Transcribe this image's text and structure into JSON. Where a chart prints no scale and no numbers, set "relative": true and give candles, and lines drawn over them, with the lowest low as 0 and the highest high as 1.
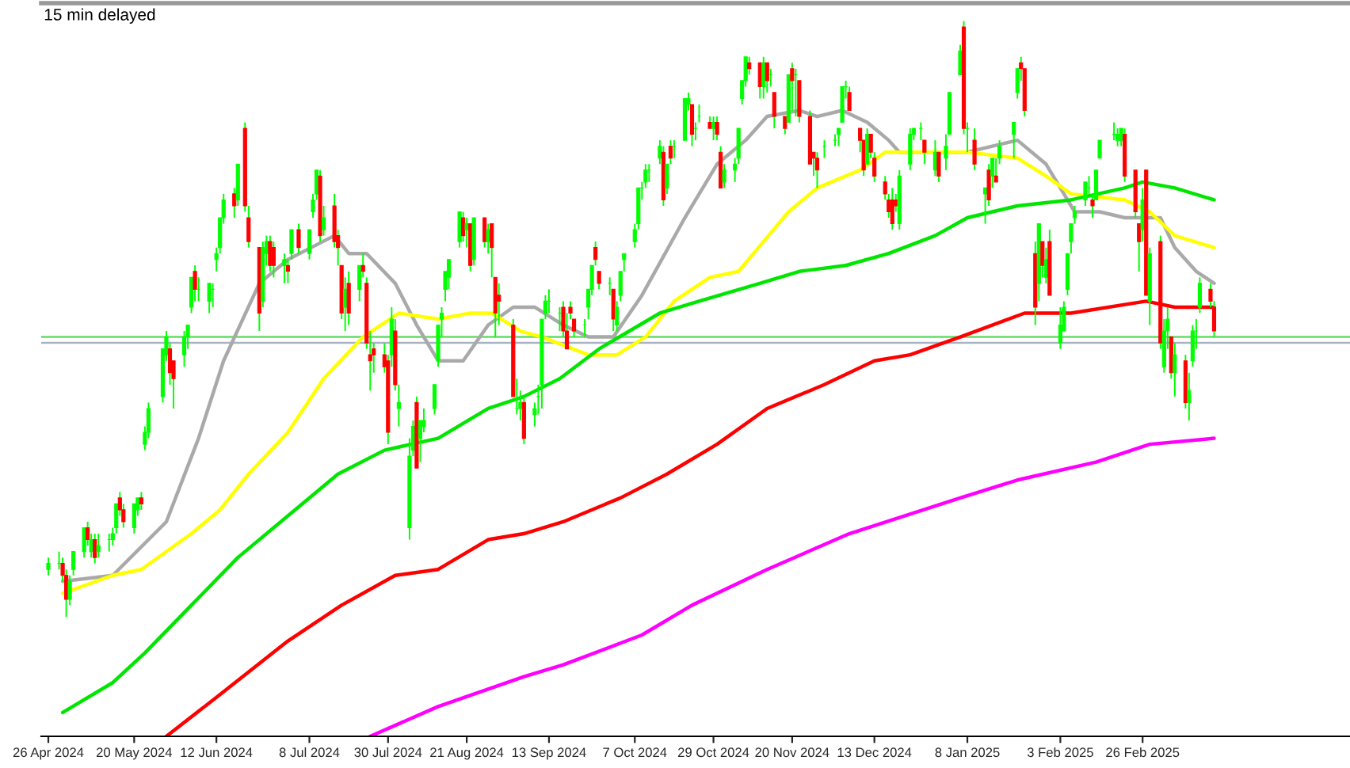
{
  "chart_data": {
    "type": "candlestick",
    "title": "15 min delayed",
    "relative": true,
    "tick_labels": "x",
    "xlim": [
      "2024-04-24",
      "2025-04-25"
    ],
    "xticks": [
      {
        "value": "2024-04-26",
        "label": "26 Apr 2024"
      },
      {
        "value": "2024-05-20",
        "label": "20 May 2024"
      },
      {
        "value": "2024-06-12",
        "label": "12 Jun 2024"
      },
      {
        "value": "2024-07-08",
        "label": "8 Jul 2024"
      },
      {
        "value": "2024-07-30",
        "label": "30 Jul 2024"
      },
      {
        "value": "2024-08-21",
        "label": "21 Aug 2024"
      },
      {
        "value": "2024-09-13",
        "label": "13 Sep 2024"
      },
      {
        "value": "2024-10-07",
        "label": "7 Oct 2024"
      },
      {
        "value": "2024-10-29",
        "label": "29 Oct 2024"
      },
      {
        "value": "2024-11-20",
        "label": "20 Nov 2024"
      },
      {
        "value": "2024-12-13",
        "label": "13 Dec 2024"
      },
      {
        "value": "2025-01-08",
        "label": "8 Jan 2025"
      },
      {
        "value": "2025-02-03",
        "label": "3 Feb 2025"
      },
      {
        "value": "2025-02-26",
        "label": "26 Feb 2025"
      }
    ],
    "ref_lines": [
      {
        "axis": "y",
        "value": 0.47,
        "color": "#66dd66"
      },
      {
        "axis": "y",
        "value": 0.46,
        "color": "#a9b4c2"
      }
    ],
    "series": [
      {
        "type": "line",
        "color": "#a9a9a9",
        "x": [
          "2024-04-30",
          "2024-05-14",
          "2024-05-29",
          "2024-06-07",
          "2024-06-14",
          "2024-06-24",
          "2024-07-02",
          "2024-07-15",
          "2024-07-19",
          "2024-07-24",
          "2024-08-01",
          "2024-08-07",
          "2024-08-13",
          "2024-08-20",
          "2024-08-27",
          "2024-09-03",
          "2024-09-09",
          "2024-09-17",
          "2024-09-24",
          "2024-10-01",
          "2024-10-09",
          "2024-10-21",
          "2024-10-30",
          "2024-11-07",
          "2024-11-13",
          "2024-11-22",
          "2024-11-27",
          "2024-12-04",
          "2024-12-11",
          "2024-12-17",
          "2024-12-20",
          "2024-12-30",
          "2025-01-08",
          "2025-01-22",
          "2025-01-30",
          "2025-02-05",
          "2025-02-07",
          "2025-02-14",
          "2025-02-21",
          "2025-03-03",
          "2025-03-07",
          "2025-03-13",
          "2025-03-18"
        ],
        "values": [
          0.06,
          0.07,
          0.16,
          0.3,
          0.43,
          0.56,
          0.6,
          0.64,
          0.61,
          0.61,
          0.56,
          0.49,
          0.43,
          0.43,
          0.49,
          0.52,
          0.52,
          0.49,
          0.47,
          0.47,
          0.54,
          0.67,
          0.76,
          0.8,
          0.84,
          0.85,
          0.84,
          0.85,
          0.83,
          0.8,
          0.78,
          0.78,
          0.78,
          0.8,
          0.76,
          0.7,
          0.68,
          0.68,
          0.67,
          0.67,
          0.62,
          0.58,
          0.56
        ]
      },
      {
        "type": "line",
        "color": "#ffff00",
        "x": [
          "2024-04-30",
          "2024-05-14",
          "2024-05-22",
          "2024-06-05",
          "2024-06-13",
          "2024-06-21",
          "2024-07-02",
          "2024-07-12",
          "2024-07-23",
          "2024-08-02",
          "2024-08-13",
          "2024-08-22",
          "2024-08-28",
          "2024-09-05",
          "2024-09-11",
          "2024-09-24",
          "2024-10-02",
          "2024-10-10",
          "2024-10-18",
          "2024-10-28",
          "2024-11-05",
          "2024-11-12",
          "2024-11-19",
          "2024-11-27",
          "2024-12-09",
          "2024-12-16",
          "2025-01-08",
          "2025-01-22",
          "2025-01-30",
          "2025-02-06",
          "2025-02-21",
          "2025-02-28",
          "2025-03-07",
          "2025-03-18"
        ],
        "values": [
          0.04,
          0.07,
          0.08,
          0.14,
          0.18,
          0.24,
          0.31,
          0.4,
          0.47,
          0.51,
          0.5,
          0.51,
          0.51,
          0.48,
          0.47,
          0.44,
          0.44,
          0.47,
          0.53,
          0.57,
          0.58,
          0.63,
          0.68,
          0.72,
          0.75,
          0.78,
          0.78,
          0.77,
          0.74,
          0.71,
          0.7,
          0.68,
          0.64,
          0.62
        ]
      },
      {
        "type": "line",
        "color": "#00e600",
        "x": [
          "2024-04-30",
          "2024-05-14",
          "2024-05-23",
          "2024-06-05",
          "2024-06-18",
          "2024-07-02",
          "2024-07-16",
          "2024-07-29",
          "2024-08-13",
          "2024-08-27",
          "2024-09-06",
          "2024-09-16",
          "2024-09-27",
          "2024-10-14",
          "2024-10-25",
          "2024-11-11",
          "2024-11-22",
          "2024-12-05",
          "2024-12-17",
          "2024-12-30",
          "2025-01-08",
          "2025-01-22",
          "2025-02-06",
          "2025-02-21",
          "2025-02-26",
          "2025-03-07",
          "2025-03-18"
        ],
        "values": [
          -0.16,
          -0.11,
          -0.06,
          0.02,
          0.1,
          0.17,
          0.24,
          0.28,
          0.3,
          0.35,
          0.37,
          0.4,
          0.45,
          0.51,
          0.53,
          0.56,
          0.58,
          0.59,
          0.61,
          0.64,
          0.67,
          0.69,
          0.7,
          0.72,
          0.73,
          0.72,
          0.7
        ]
      },
      {
        "type": "line",
        "color": "#ff0000",
        "x": [
          "2024-05-29",
          "2024-06-13",
          "2024-07-02",
          "2024-07-17",
          "2024-08-01",
          "2024-08-13",
          "2024-08-27",
          "2024-09-06",
          "2024-09-17",
          "2024-10-03",
          "2024-10-16",
          "2024-10-30",
          "2024-11-13",
          "2024-11-29",
          "2024-12-13",
          "2024-12-23",
          "2025-01-06",
          "2025-01-24",
          "2025-02-06",
          "2025-02-27",
          "2025-03-07",
          "2025-03-18"
        ],
        "values": [
          -0.2,
          -0.13,
          -0.04,
          0.02,
          0.07,
          0.08,
          0.13,
          0.14,
          0.16,
          0.2,
          0.24,
          0.29,
          0.35,
          0.39,
          0.43,
          0.44,
          0.47,
          0.51,
          0.51,
          0.53,
          0.52,
          0.52
        ]
      },
      {
        "type": "line",
        "color": "#ff00ff",
        "x": [
          "2024-07-25",
          "2024-08-13",
          "2024-09-06",
          "2024-09-17",
          "2024-10-09",
          "2024-10-23",
          "2024-11-13",
          "2024-12-06",
          "2025-01-06",
          "2025-01-22",
          "2025-02-13",
          "2025-02-28",
          "2025-03-18"
        ],
        "values": [
          -0.2,
          -0.15,
          -0.1,
          -0.08,
          -0.03,
          0.02,
          0.08,
          0.14,
          0.2,
          0.23,
          0.26,
          0.29,
          0.3
        ]
      },
      {
        "color": "#00ff00",
        "x": [
          "2024-04-26",
          "2024-04-29",
          "2024-04-30",
          "2024-05-01",
          "2024-05-02",
          "2024-05-03",
          "2024-05-06",
          "2024-05-07",
          "2024-05-08",
          "2024-05-09",
          "2024-05-10",
          "2024-05-13",
          "2024-05-14",
          "2024-05-15",
          "2024-05-16",
          "2024-05-17",
          "2024-05-20",
          "2024-05-21",
          "2024-05-22",
          "2024-05-23",
          "2024-05-24",
          "2024-05-28",
          "2024-05-29",
          "2024-05-30",
          "2024-05-31",
          "2024-06-03",
          "2024-06-04",
          "2024-06-05",
          "2024-06-06",
          "2024-06-07",
          "2024-06-10",
          "2024-06-11",
          "2024-06-12",
          "2024-06-13",
          "2024-06-14",
          "2024-06-17",
          "2024-06-18",
          "2024-06-20",
          "2024-06-21",
          "2024-06-24",
          "2024-06-25",
          "2024-06-26",
          "2024-06-27",
          "2024-06-28",
          "2024-07-01",
          "2024-07-02",
          "2024-07-03",
          "2024-07-05",
          "2024-07-08",
          "2024-07-09",
          "2024-07-10",
          "2024-07-11",
          "2024-07-12",
          "2024-07-15",
          "2024-07-16",
          "2024-07-17",
          "2024-07-18",
          "2024-07-19",
          "2024-07-22",
          "2024-07-23",
          "2024-07-24",
          "2024-07-25",
          "2024-07-26",
          "2024-07-29",
          "2024-07-30",
          "2024-07-31",
          "2024-08-01",
          "2024-08-02",
          "2024-08-05",
          "2024-08-06",
          "2024-08-07",
          "2024-08-08",
          "2024-08-09",
          "2024-08-12",
          "2024-08-13",
          "2024-08-14",
          "2024-08-15",
          "2024-08-16",
          "2024-08-19",
          "2024-08-20",
          "2024-08-21",
          "2024-08-22",
          "2024-08-23",
          "2024-08-26",
          "2024-08-27",
          "2024-08-28",
          "2024-08-29",
          "2024-08-30",
          "2024-09-03",
          "2024-09-04",
          "2024-09-05",
          "2024-09-06",
          "2024-09-09",
          "2024-09-10",
          "2024-09-11",
          "2024-09-12",
          "2024-09-13",
          "2024-09-16",
          "2024-09-17",
          "2024-09-18",
          "2024-09-19",
          "2024-09-20",
          "2024-09-23",
          "2024-09-24",
          "2024-09-25",
          "2024-09-26",
          "2024-09-27",
          "2024-09-30",
          "2024-10-01",
          "2024-10-02",
          "2024-10-03",
          "2024-10-04",
          "2024-10-07",
          "2024-10-08",
          "2024-10-09",
          "2024-10-10",
          "2024-10-11",
          "2024-10-14",
          "2024-10-15",
          "2024-10-16",
          "2024-10-17",
          "2024-10-18",
          "2024-10-21",
          "2024-10-22",
          "2024-10-23",
          "2024-10-24",
          "2024-10-25",
          "2024-10-28",
          "2024-10-29",
          "2024-10-30",
          "2024-10-31",
          "2024-11-01",
          "2024-11-04",
          "2024-11-05",
          "2024-11-06",
          "2024-11-07",
          "2024-11-08",
          "2024-11-11",
          "2024-11-12",
          "2024-11-13",
          "2024-11-14",
          "2024-11-15",
          "2024-11-18",
          "2024-11-19",
          "2024-11-20",
          "2024-11-21",
          "2024-11-22",
          "2024-11-25",
          "2024-11-26",
          "2024-11-27",
          "2024-11-29",
          "2024-12-02",
          "2024-12-03",
          "2024-12-04",
          "2024-12-05",
          "2024-12-06",
          "2024-12-09",
          "2024-12-10",
          "2024-12-11",
          "2024-12-12",
          "2024-12-13",
          "2024-12-16",
          "2024-12-17",
          "2024-12-18",
          "2024-12-19",
          "2024-12-20",
          "2024-12-23",
          "2024-12-24",
          "2024-12-26",
          "2024-12-27",
          "2024-12-30",
          "2024-12-31",
          "2025-01-02",
          "2025-01-03",
          "2025-01-06",
          "2025-01-07",
          "2025-01-08",
          "2025-01-10",
          "2025-01-13",
          "2025-01-14",
          "2025-01-15",
          "2025-01-16",
          "2025-01-17",
          "2025-01-21",
          "2025-01-22",
          "2025-01-23",
          "2025-01-24",
          "2025-01-27",
          "2025-01-28",
          "2025-01-29",
          "2025-01-30",
          "2025-01-31",
          "2025-02-03",
          "2025-02-04",
          "2025-02-05",
          "2025-02-06",
          "2025-02-07",
          "2025-02-10",
          "2025-02-11",
          "2025-02-12",
          "2025-02-13",
          "2025-02-14",
          "2025-02-18",
          "2025-02-19",
          "2025-02-20",
          "2025-02-21",
          "2025-02-24",
          "2025-02-25",
          "2025-02-26",
          "2025-02-27",
          "2025-02-28",
          "2025-03-03",
          "2025-03-04",
          "2025-03-05",
          "2025-03-06",
          "2025-03-07",
          "2025-03-10",
          "2025-03-11",
          "2025-03-12",
          "2025-03-13",
          "2025-03-14",
          "2025-03-17",
          "2025-03-18"
        ],
        "ohlc": [
          [
            0.08,
            0.1,
            0.07,
            0.09
          ],
          [
            0.09,
            0.11,
            0.08,
            0.09
          ],
          [
            0.09,
            0.1,
            0.06,
            0.07
          ],
          [
            0.07,
            0.08,
            0.0,
            0.03
          ],
          [
            0.03,
            0.07,
            0.02,
            0.06
          ],
          [
            0.08,
            0.11,
            0.07,
            0.11
          ],
          [
            0.11,
            0.15,
            0.1,
            0.15
          ],
          [
            0.15,
            0.16,
            0.12,
            0.13
          ],
          [
            0.11,
            0.14,
            0.1,
            0.13
          ],
          [
            0.13,
            0.14,
            0.09,
            0.1
          ],
          [
            0.11,
            0.14,
            0.1,
            0.12
          ],
          [
            0.13,
            0.14,
            0.11,
            0.13
          ],
          [
            0.13,
            0.15,
            0.12,
            0.14
          ],
          [
            0.15,
            0.19,
            0.14,
            0.19
          ],
          [
            0.2,
            0.21,
            0.17,
            0.18
          ],
          [
            0.18,
            0.19,
            0.15,
            0.16
          ],
          [
            0.15,
            0.19,
            0.14,
            0.19
          ],
          [
            0.18,
            0.2,
            0.17,
            0.2
          ],
          [
            0.2,
            0.21,
            0.18,
            0.19
          ],
          [
            0.29,
            0.32,
            0.28,
            0.31
          ],
          [
            0.31,
            0.36,
            0.3,
            0.35
          ],
          [
            0.37,
            0.45,
            0.36,
            0.45
          ],
          [
            0.44,
            0.48,
            0.43,
            0.47
          ],
          [
            0.45,
            0.46,
            0.39,
            0.41
          ],
          [
            0.43,
            0.43,
            0.35,
            0.4
          ],
          [
            0.44,
            0.48,
            0.42,
            0.47
          ],
          [
            0.47,
            0.49,
            0.45,
            0.49
          ],
          [
            0.52,
            0.57,
            0.51,
            0.57
          ],
          [
            0.58,
            0.59,
            0.53,
            0.55
          ],
          [
            0.55,
            0.57,
            0.53,
            0.55
          ],
          [
            0.53,
            0.56,
            0.51,
            0.56
          ],
          [
            0.55,
            0.56,
            0.52,
            0.55
          ],
          [
            0.6,
            0.62,
            0.58,
            0.61
          ],
          [
            0.62,
            0.67,
            0.61,
            0.67
          ],
          [
            0.67,
            0.71,
            0.66,
            0.7
          ],
          [
            0.71,
            0.72,
            0.67,
            0.69
          ],
          [
            0.7,
            0.76,
            0.69,
            0.76
          ],
          [
            0.82,
            0.83,
            0.68,
            0.69
          ],
          [
            0.67,
            0.69,
            0.62,
            0.63
          ],
          [
            0.62,
            0.62,
            0.48,
            0.51
          ],
          [
            0.53,
            0.63,
            0.52,
            0.62
          ],
          [
            0.61,
            0.64,
            0.59,
            0.63
          ],
          [
            0.63,
            0.64,
            0.58,
            0.59
          ],
          [
            0.62,
            0.63,
            0.57,
            0.59
          ],
          [
            0.59,
            0.61,
            0.56,
            0.6
          ],
          [
            0.59,
            0.6,
            0.56,
            0.58
          ],
          [
            0.61,
            0.65,
            0.6,
            0.65
          ],
          [
            0.65,
            0.66,
            0.61,
            0.62
          ],
          [
            0.61,
            0.65,
            0.6,
            0.65
          ],
          [
            0.68,
            0.71,
            0.67,
            0.7
          ],
          [
            0.71,
            0.75,
            0.7,
            0.75
          ],
          [
            0.74,
            0.75,
            0.63,
            0.64
          ],
          [
            0.65,
            0.69,
            0.64,
            0.67
          ],
          [
            0.69,
            0.71,
            0.62,
            0.63
          ],
          [
            0.64,
            0.65,
            0.59,
            0.62
          ],
          [
            0.59,
            0.59,
            0.5,
            0.51
          ],
          [
            0.52,
            0.57,
            0.48,
            0.55
          ],
          [
            0.56,
            0.58,
            0.49,
            0.51
          ],
          [
            0.55,
            0.59,
            0.53,
            0.59
          ],
          [
            0.59,
            0.61,
            0.57,
            0.58
          ],
          [
            0.56,
            0.57,
            0.45,
            0.46
          ],
          [
            0.44,
            0.48,
            0.38,
            0.43
          ],
          [
            0.45,
            0.46,
            0.41,
            0.44
          ],
          [
            0.44,
            0.46,
            0.41,
            0.42
          ],
          [
            0.43,
            0.44,
            0.29,
            0.31
          ],
          [
            0.44,
            0.52,
            0.42,
            0.5
          ],
          [
            0.48,
            0.5,
            0.38,
            0.39
          ],
          [
            0.35,
            0.39,
            0.32,
            0.36
          ],
          [
            0.15,
            0.3,
            0.13,
            0.27
          ],
          [
            0.28,
            0.33,
            0.27,
            0.32
          ],
          [
            0.36,
            0.37,
            0.25,
            0.25
          ],
          [
            0.3,
            0.33,
            0.26,
            0.33
          ],
          [
            0.32,
            0.35,
            0.31,
            0.33
          ],
          [
            0.35,
            0.39,
            0.34,
            0.39
          ],
          [
            0.43,
            0.49,
            0.42,
            0.49
          ],
          [
            0.5,
            0.52,
            0.47,
            0.51
          ],
          [
            0.55,
            0.58,
            0.53,
            0.58
          ],
          [
            0.57,
            0.6,
            0.55,
            0.6
          ],
          [
            0.63,
            0.68,
            0.62,
            0.68
          ],
          [
            0.67,
            0.68,
            0.63,
            0.64
          ],
          [
            0.65,
            0.67,
            0.62,
            0.66
          ],
          [
            0.66,
            0.66,
            0.58,
            0.59
          ],
          [
            0.6,
            0.67,
            0.59,
            0.67
          ],
          [
            0.67,
            0.67,
            0.62,
            0.63
          ],
          [
            0.63,
            0.66,
            0.61,
            0.65
          ],
          [
            0.66,
            0.66,
            0.57,
            0.62
          ],
          [
            0.57,
            0.57,
            0.47,
            0.51
          ],
          [
            0.54,
            0.56,
            0.49,
            0.53
          ],
          [
            0.49,
            0.5,
            0.37,
            0.37
          ],
          [
            0.35,
            0.4,
            0.34,
            0.35
          ],
          [
            0.35,
            0.38,
            0.33,
            0.36
          ],
          [
            0.36,
            0.37,
            0.29,
            0.3
          ],
          [
            0.34,
            0.36,
            0.32,
            0.35
          ],
          [
            0.37,
            0.39,
            0.34,
            0.37
          ],
          [
            0.39,
            0.5,
            0.35,
            0.5
          ],
          [
            0.51,
            0.54,
            0.5,
            0.53
          ],
          [
            0.53,
            0.55,
            0.51,
            0.53
          ],
          [
            0.51,
            0.52,
            0.48,
            0.51
          ],
          [
            0.52,
            0.53,
            0.47,
            0.48
          ],
          [
            0.48,
            0.51,
            0.45,
            0.45
          ],
          [
            0.52,
            0.53,
            0.5,
            0.51
          ],
          [
            0.5,
            0.5,
            0.47,
            0.48
          ],
          [
            0.49,
            0.5,
            0.47,
            0.49
          ],
          [
            0.52,
            0.55,
            0.5,
            0.55
          ],
          [
            0.55,
            0.59,
            0.54,
            0.59
          ],
          [
            0.62,
            0.63,
            0.59,
            0.6
          ],
          [
            0.58,
            0.58,
            0.55,
            0.56
          ],
          [
            0.56,
            0.57,
            0.54,
            0.56
          ],
          [
            0.55,
            0.55,
            0.48,
            0.5
          ],
          [
            0.49,
            0.53,
            0.48,
            0.52
          ],
          [
            0.54,
            0.58,
            0.53,
            0.58
          ],
          [
            0.6,
            0.61,
            0.58,
            0.61
          ],
          [
            0.63,
            0.66,
            0.62,
            0.65
          ],
          [
            0.66,
            0.72,
            0.65,
            0.72
          ],
          [
            0.72,
            0.73,
            0.7,
            0.72
          ],
          [
            0.73,
            0.76,
            0.72,
            0.75
          ],
          [
            0.75,
            0.76,
            0.73,
            0.75
          ],
          [
            0.77,
            0.8,
            0.76,
            0.79
          ],
          [
            0.78,
            0.79,
            0.69,
            0.7
          ],
          [
            0.72,
            0.76,
            0.71,
            0.76
          ],
          [
            0.79,
            0.8,
            0.76,
            0.77
          ],
          [
            0.79,
            0.8,
            0.77,
            0.79
          ],
          [
            0.8,
            0.87,
            0.8,
            0.87
          ],
          [
            0.86,
            0.88,
            0.85,
            0.87
          ],
          [
            0.86,
            0.86,
            0.79,
            0.81
          ],
          [
            0.82,
            0.83,
            0.8,
            0.82
          ],
          [
            0.84,
            0.86,
            0.83,
            0.84
          ],
          [
            0.83,
            0.84,
            0.82,
            0.82
          ],
          [
            0.82,
            0.84,
            0.8,
            0.83
          ],
          [
            0.83,
            0.84,
            0.8,
            0.81
          ],
          [
            0.78,
            0.79,
            0.72,
            0.72
          ],
          [
            0.73,
            0.76,
            0.72,
            0.75
          ],
          [
            0.75,
            0.77,
            0.73,
            0.76
          ],
          [
            0.77,
            0.82,
            0.76,
            0.82
          ],
          [
            0.87,
            0.9,
            0.86,
            0.9
          ],
          [
            0.9,
            0.94,
            0.89,
            0.94
          ],
          [
            0.93,
            0.94,
            0.91,
            0.92
          ],
          [
            0.93,
            0.93,
            0.87,
            0.89
          ],
          [
            0.89,
            0.94,
            0.87,
            0.93
          ],
          [
            0.93,
            0.93,
            0.88,
            0.9
          ],
          [
            0.91,
            0.92,
            0.89,
            0.91
          ],
          [
            0.88,
            0.88,
            0.82,
            0.84
          ],
          [
            0.84,
            0.84,
            0.81,
            0.82
          ],
          [
            0.83,
            0.91,
            0.83,
            0.91
          ],
          [
            0.92,
            0.93,
            0.85,
            0.9
          ],
          [
            0.91,
            0.92,
            0.84,
            0.91
          ],
          [
            0.9,
            0.9,
            0.83,
            0.84
          ],
          [
            0.84,
            0.85,
            0.76,
            0.76
          ],
          [
            0.78,
            0.78,
            0.74,
            0.77
          ],
          [
            0.77,
            0.78,
            0.72,
            0.75
          ],
          [
            0.79,
            0.8,
            0.77,
            0.79
          ],
          [
            0.8,
            0.81,
            0.79,
            0.8
          ],
          [
            0.81,
            0.82,
            0.79,
            0.82
          ],
          [
            0.83,
            0.89,
            0.83,
            0.89
          ],
          [
            0.89,
            0.9,
            0.87,
            0.89
          ],
          [
            0.88,
            0.89,
            0.85,
            0.85
          ],
          [
            0.82,
            0.82,
            0.78,
            0.8
          ],
          [
            0.8,
            0.8,
            0.74,
            0.75
          ],
          [
            0.76,
            0.82,
            0.76,
            0.81
          ],
          [
            0.81,
            0.81,
            0.77,
            0.78
          ],
          [
            0.77,
            0.78,
            0.73,
            0.74
          ],
          [
            0.73,
            0.74,
            0.7,
            0.71
          ],
          [
            0.7,
            0.71,
            0.67,
            0.68
          ],
          [
            0.7,
            0.72,
            0.65,
            0.66
          ],
          [
            0.7,
            0.71,
            0.68,
            0.69
          ],
          [
            0.66,
            0.75,
            0.65,
            0.74
          ],
          [
            0.76,
            0.82,
            0.75,
            0.81
          ],
          [
            0.81,
            0.82,
            0.8,
            0.82
          ],
          [
            0.82,
            0.83,
            0.8,
            0.82
          ],
          [
            0.8,
            0.8,
            0.76,
            0.78
          ],
          [
            0.75,
            0.8,
            0.74,
            0.78
          ],
          [
            0.78,
            0.78,
            0.73,
            0.74
          ],
          [
            0.77,
            0.81,
            0.75,
            0.79
          ],
          [
            0.81,
            0.88,
            0.81,
            0.88
          ],
          [
            0.91,
            0.96,
            0.91,
            0.95
          ],
          [
            0.99,
            1.0,
            0.81,
            0.82
          ],
          [
            0.82,
            0.83,
            0.78,
            0.82
          ],
          [
            0.8,
            0.82,
            0.75,
            0.76
          ],
          [
            0.71,
            0.72,
            0.66,
            0.72
          ],
          [
            0.75,
            0.76,
            0.69,
            0.7
          ],
          [
            0.74,
            0.77,
            0.72,
            0.77
          ],
          [
            0.74,
            0.77,
            0.73,
            0.73
          ],
          [
            0.77,
            0.8,
            0.76,
            0.79
          ],
          [
            0.81,
            0.83,
            0.77,
            0.83
          ],
          [
            0.88,
            0.92,
            0.87,
            0.92
          ],
          [
            0.93,
            0.94,
            0.9,
            0.92
          ],
          [
            0.92,
            0.92,
            0.84,
            0.85
          ],
          [
            0.61,
            0.63,
            0.49,
            0.52
          ],
          [
            0.56,
            0.66,
            0.53,
            0.66
          ],
          [
            0.63,
            0.63,
            0.57,
            0.59
          ],
          [
            0.57,
            0.62,
            0.56,
            0.6
          ],
          [
            0.63,
            0.65,
            0.54,
            0.54
          ],
          [
            0.46,
            0.52,
            0.45,
            0.49
          ],
          [
            0.48,
            0.53,
            0.48,
            0.52
          ],
          [
            0.55,
            0.61,
            0.54,
            0.61
          ],
          [
            0.63,
            0.66,
            0.61,
            0.66
          ],
          [
            0.67,
            0.69,
            0.66,
            0.68
          ],
          [
            0.7,
            0.73,
            0.69,
            0.73
          ],
          [
            0.72,
            0.74,
            0.71,
            0.72
          ],
          [
            0.7,
            0.71,
            0.67,
            0.69
          ],
          [
            0.7,
            0.75,
            0.7,
            0.75
          ],
          [
            0.77,
            0.8,
            0.77,
            0.8
          ],
          [
            0.81,
            0.83,
            0.8,
            0.81
          ],
          [
            0.8,
            0.82,
            0.79,
            0.81
          ],
          [
            0.8,
            0.82,
            0.79,
            0.82
          ],
          [
            0.81,
            0.82,
            0.73,
            0.74
          ],
          [
            0.75,
            0.75,
            0.67,
            0.68
          ],
          [
            0.66,
            0.66,
            0.58,
            0.63
          ],
          [
            0.65,
            0.72,
            0.63,
            0.7
          ],
          [
            0.75,
            0.75,
            0.54,
            0.54
          ],
          [
            0.53,
            0.62,
            0.49,
            0.61
          ],
          [
            0.63,
            0.64,
            0.45,
            0.46
          ],
          [
            0.42,
            0.5,
            0.41,
            0.48
          ],
          [
            0.48,
            0.52,
            0.45,
            0.5
          ],
          [
            0.47,
            0.47,
            0.4,
            0.41
          ],
          [
            0.41,
            0.46,
            0.37,
            0.44
          ],
          [
            0.43,
            0.44,
            0.35,
            0.36
          ],
          [
            0.36,
            0.41,
            0.33,
            0.38
          ],
          [
            0.43,
            0.49,
            0.42,
            0.48
          ],
          [
            0.48,
            0.5,
            0.45,
            0.48
          ],
          [
            0.52,
            0.57,
            0.51,
            0.56
          ],
          [
            0.55,
            0.56,
            0.52,
            0.53
          ],
          [
            0.52,
            0.53,
            0.47,
            0.48
          ]
        ],
        "colors": [
          "#00ff00",
          "#00ff00",
          "#ff0000",
          "#ff0000",
          "#00ff00",
          "#00ff00",
          "#00ff00",
          "#ff0000",
          "#00ff00",
          "#ff0000",
          "#00ff00",
          "#00ff00",
          "#00ff00",
          "#00ff00",
          "#ff0000",
          "#ff0000",
          "#00ff00",
          "#00ff00",
          "#ff0000",
          "#00ff00",
          "#00ff00",
          "#00ff00",
          "#00ff00",
          "#ff0000",
          "#ff0000",
          "#00ff00",
          "#00ff00",
          "#00ff00",
          "#ff0000",
          "#00ff00",
          "#00ff00",
          "#00ff00",
          "#00ff00",
          "#00ff00",
          "#00ff00",
          "#ff0000",
          "#00ff00",
          "#ff0000",
          "#ff0000",
          "#ff0000",
          "#00ff00",
          "#00ff00",
          "#ff0000",
          "#ff0000",
          "#00ff00",
          "#ff0000",
          "#00ff00",
          "#ff0000",
          "#00ff00",
          "#00ff00",
          "#00ff00",
          "#ff0000",
          "#00ff00",
          "#ff0000",
          "#ff0000",
          "#ff0000",
          "#00ff00",
          "#ff0000",
          "#00ff00",
          "#ff0000",
          "#ff0000",
          "#ff0000",
          "#ff0000",
          "#ff0000",
          "#ff0000",
          "#00ff00",
          "#ff0000",
          "#00ff00",
          "#00ff00",
          "#00ff00",
          "#ff0000",
          "#00ff00",
          "#00ff00",
          "#00ff00",
          "#00ff00",
          "#00ff00",
          "#00ff00",
          "#00ff00",
          "#00ff00",
          "#ff0000",
          "#00ff00",
          "#ff0000",
          "#00ff00",
          "#ff0000",
          "#00ff00",
          "#ff0000",
          "#ff0000",
          "#ff0000",
          "#ff0000",
          "#00ff00",
          "#00ff00",
          "#ff0000",
          "#00ff00",
          "#00ff00",
          "#00ff00",
          "#00ff00",
          "#00ff00",
          "#00ff00",
          "#ff0000",
          "#ff0000",
          "#ff0000",
          "#ff0000",
          "#00ff00",
          "#00ff00",
          "#00ff00",
          "#ff0000",
          "#ff0000",
          "#00ff00",
          "#ff0000",
          "#00ff00",
          "#00ff00",
          "#00ff00",
          "#00ff00",
          "#00ff00",
          "#00ff00",
          "#00ff00",
          "#00ff00",
          "#00ff00",
          "#ff0000",
          "#00ff00",
          "#ff0000",
          "#00ff00",
          "#00ff00",
          "#00ff00",
          "#ff0000",
          "#00ff00",
          "#00ff00",
          "#ff0000",
          "#00ff00",
          "#ff0000",
          "#ff0000",
          "#00ff00",
          "#00ff00",
          "#00ff00",
          "#00ff00",
          "#00ff00",
          "#ff0000",
          "#ff0000",
          "#00ff00",
          "#ff0000",
          "#00ff00",
          "#ff0000",
          "#ff0000",
          "#00ff00",
          "#ff0000",
          "#00ff00",
          "#ff0000",
          "#ff0000",
          "#ff0000",
          "#ff0000",
          "#00ff00",
          "#00ff00",
          "#00ff00",
          "#00ff00",
          "#00ff00",
          "#ff0000",
          "#ff0000",
          "#ff0000",
          "#00ff00",
          "#ff0000",
          "#ff0000",
          "#ff0000",
          "#ff0000",
          "#ff0000",
          "#ff0000",
          "#00ff00",
          "#00ff00",
          "#00ff00",
          "#00ff00",
          "#ff0000",
          "#00ff00",
          "#ff0000",
          "#00ff00",
          "#00ff00",
          "#00ff00",
          "#ff0000",
          "#00ff00",
          "#ff0000",
          "#00ff00",
          "#ff0000",
          "#00ff00",
          "#ff0000",
          "#00ff00",
          "#00ff00",
          "#00ff00",
          "#ff0000",
          "#ff0000",
          "#ff0000",
          "#00ff00",
          "#ff0000",
          "#00ff00",
          "#ff0000",
          "#00ff00",
          "#00ff00",
          "#00ff00",
          "#00ff00",
          "#00ff00",
          "#00ff00",
          "#00ff00",
          "#ff0000",
          "#00ff00",
          "#00ff00",
          "#00ff00",
          "#00ff00",
          "#00ff00",
          "#ff0000",
          "#ff0000",
          "#ff0000",
          "#00ff00",
          "#ff0000",
          "#00ff00",
          "#ff0000",
          "#00ff00",
          "#00ff00",
          "#ff0000",
          "#00ff00",
          "#ff0000",
          "#00ff00",
          "#00ff00",
          "#00ff00",
          "#00ff00",
          "#ff0000",
          "#ff0000"
        ]
      }
    ]
  }
}
